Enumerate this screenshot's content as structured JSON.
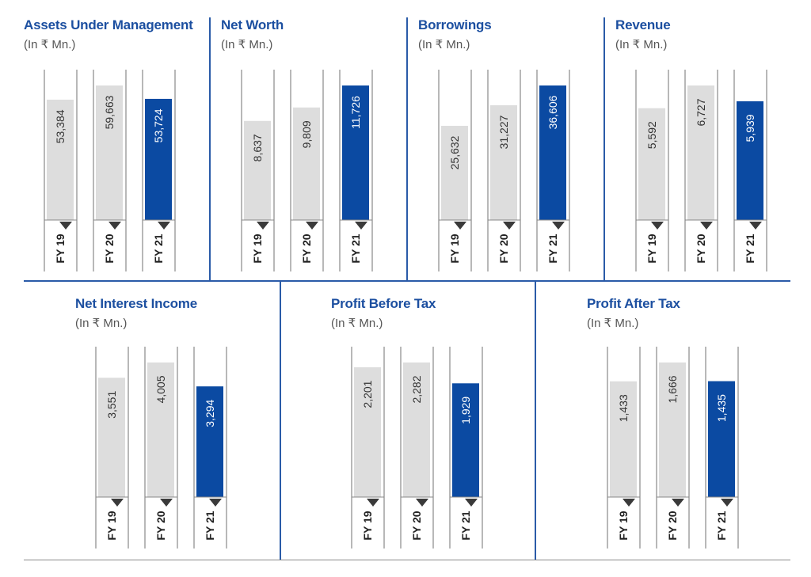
{
  "colors": {
    "title": "#1c4fa0",
    "highlight_bar": "#0b4aa2",
    "past_bar": "#dddddd",
    "divider": "#2a5ba8",
    "marker": "#3a3a3a"
  },
  "chart_data": [
    {
      "type": "bar",
      "title": "Assets Under Management",
      "subtitle": "(In ₹ Mn.)",
      "categories": [
        "FY 19",
        "FY 20",
        "FY 21"
      ],
      "values": [
        53384,
        59663,
        53724
      ],
      "labels": [
        "53,384",
        "59,663",
        "53,724"
      ],
      "highlight": "FY 21"
    },
    {
      "type": "bar",
      "title": "Net Worth",
      "subtitle": "(In ₹ Mn.)",
      "categories": [
        "FY 19",
        "FY 20",
        "FY 21"
      ],
      "values": [
        8637,
        9809,
        11726
      ],
      "labels": [
        "8,637",
        "9,809",
        "11,726"
      ],
      "highlight": "FY 21"
    },
    {
      "type": "bar",
      "title": "Borrowings",
      "subtitle": "(In ₹ Mn.)",
      "categories": [
        "FY 19",
        "FY 20",
        "FY 21"
      ],
      "values": [
        25632,
        31227,
        36606
      ],
      "labels": [
        "25,632",
        "31,227",
        "36,606"
      ],
      "highlight": "FY 21"
    },
    {
      "type": "bar",
      "title": "Revenue",
      "subtitle": "(In ₹ Mn.)",
      "categories": [
        "FY 19",
        "FY 20",
        "FY 21"
      ],
      "values": [
        5592,
        6727,
        5939
      ],
      "labels": [
        "5,592",
        "6,727",
        "5,939"
      ],
      "highlight": "FY 21"
    },
    {
      "type": "bar",
      "title": "Net Interest Income",
      "subtitle": "(In ₹ Mn.)",
      "categories": [
        "FY 19",
        "FY 20",
        "FY 21"
      ],
      "values": [
        3551,
        4005,
        3294
      ],
      "labels": [
        "3,551",
        "4,005",
        "3,294"
      ],
      "highlight": "FY 21"
    },
    {
      "type": "bar",
      "title": "Profit Before Tax",
      "subtitle": "(In ₹ Mn.)",
      "categories": [
        "FY 19",
        "FY 20",
        "FY 21"
      ],
      "values": [
        2201,
        2282,
        1929
      ],
      "labels": [
        "2,201",
        "2,282",
        "1,929"
      ],
      "highlight": "FY 21"
    },
    {
      "type": "bar",
      "title": "Profit After Tax",
      "subtitle": "(In ₹ Mn.)",
      "categories": [
        "FY 19",
        "FY 20",
        "FY 21"
      ],
      "values": [
        1433,
        1666,
        1435
      ],
      "labels": [
        "1,433",
        "1,666",
        "1,435"
      ],
      "highlight": "FY 21"
    }
  ]
}
